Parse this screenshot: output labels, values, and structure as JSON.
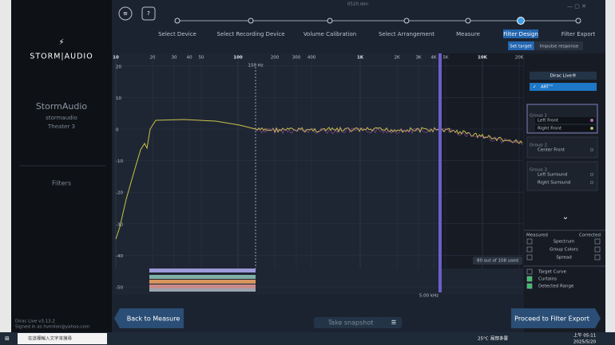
{
  "titlebar": {
    "filename": "0520.dan"
  },
  "sidebar": {
    "brand": "STORM|AUDIO",
    "device_title": "StormAudio",
    "device_sub": "stormaudio",
    "device_model": "Theater 3",
    "section": "Filters",
    "version": "Dirac Live v3.13.2",
    "signed_in": "Signed in as hvmlion@yahoo.com"
  },
  "steps": [
    "Select Device",
    "Select Recording Device",
    "Volume Calibration",
    "Select Arrangement",
    "Measure",
    "Filter Design",
    "Filter Export"
  ],
  "tabs": {
    "set_target": "Set target",
    "impulse_response": "Impulse response"
  },
  "chart": {
    "x_ticks": [
      10,
      20,
      30,
      40,
      50,
      100,
      200,
      300,
      400,
      {
        "value": 1000,
        "label": "1K"
      },
      {
        "value": 2000,
        "label": "2K"
      },
      {
        "value": 3000,
        "label": "3K"
      },
      {
        "value": 4000,
        "label": "4K"
      },
      {
        "value": 5000,
        "label": "5K"
      },
      {
        "value": 10000,
        "label": "10K"
      },
      {
        "value": 20000,
        "label": "20K"
      }
    ],
    "y_ticks": [
      20,
      10,
      0,
      -10,
      -20,
      -30,
      -40,
      -50
    ],
    "marker_label": "150 Hz",
    "range_label": "5.00 kHz",
    "filter_usage": "80 out of 108 used"
  },
  "panel": {
    "filters": [
      "Dirac Live®",
      "ART™"
    ],
    "groups": [
      {
        "name": "Group 1",
        "channels": [
          "Left Front",
          "Right Front"
        ]
      },
      {
        "name": "Group 2",
        "channels": [
          "Center Front"
        ]
      },
      {
        "name": "Group 3",
        "channels": [
          "Left Surround",
          "Right Surround"
        ]
      }
    ],
    "measured": "Measured",
    "corrected": "Corrected",
    "options": [
      "Spectrum",
      "Group Colors",
      "Spread"
    ],
    "toggles": [
      "Target Curve",
      "Curtains",
      "Detected Range"
    ]
  },
  "buttons": {
    "back": "Back to Measure",
    "snapshot": "Take snapshot",
    "proceed": "Proceed to Filter Export"
  },
  "taskbar": {
    "search": "在這裡輸入文字來搜尋",
    "weather": "25°C",
    "weather_desc": "局部多雲",
    "time": "上午 05:11",
    "date": "2025/5/20"
  }
}
